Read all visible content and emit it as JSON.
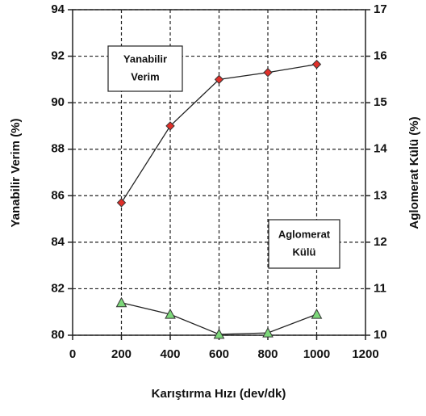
{
  "chart_data": {
    "type": "line",
    "x_label": "Karıştırma Hızı (dev/dk)",
    "y_label": "Yanabilir Verim (%)",
    "y2_label": "Aglomerat Külü (%)",
    "x": [
      200,
      400,
      600,
      800,
      1000
    ],
    "series": [
      {
        "color": "#e0302a",
        "marker": "diamond",
        "values": [
          85.7,
          89.0,
          91.0,
          91.3,
          91.65
        ]
      },
      {
        "color": "#7dd87a",
        "marker": "triangle",
        "axis": "y2",
        "values": [
          10.7,
          10.45,
          10.02,
          10.05,
          10.45
        ]
      }
    ],
    "annotations": [
      {
        "lines": [
          "Yanabilir",
          "Verim"
        ]
      },
      {
        "lines": [
          "Aglomerat",
          "Külü"
        ]
      }
    ],
    "xlim": [
      0,
      1200
    ],
    "xticks": [
      0,
      200,
      400,
      600,
      800,
      1000,
      1200
    ],
    "ylim": [
      80,
      94
    ],
    "yticks": [
      80,
      82,
      84,
      86,
      88,
      90,
      92,
      94
    ],
    "y2lim": [
      10,
      17
    ],
    "y2ticks": [
      10,
      11,
      12,
      13,
      14,
      15,
      16,
      17
    ],
    "grid": true
  }
}
